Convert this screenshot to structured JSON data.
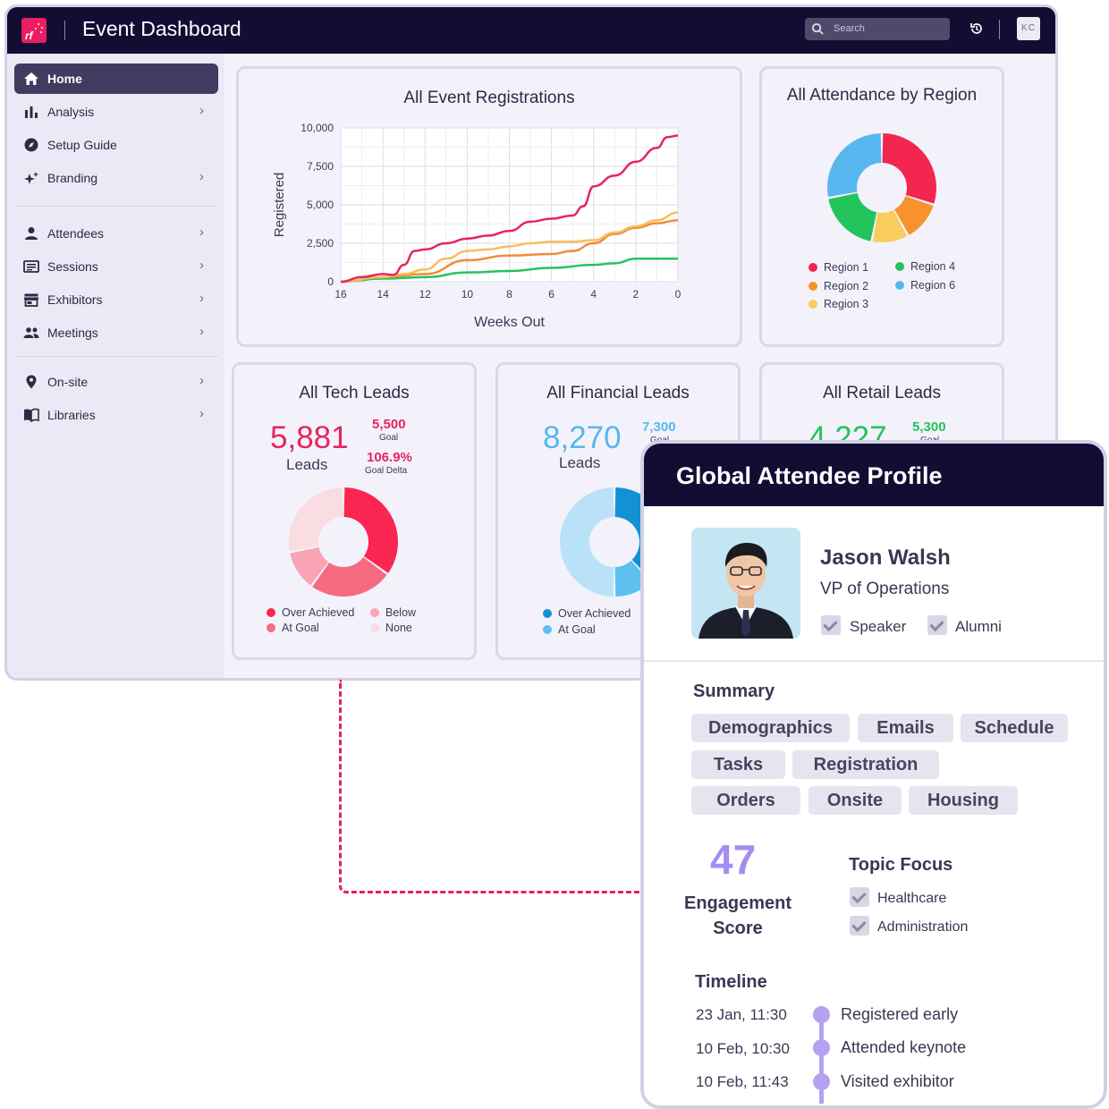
{
  "header": {
    "logo_text": "rf",
    "title": "Event Dashboard",
    "search_placeholder": "Search",
    "user_initials": "KC"
  },
  "sidebar": {
    "items": [
      {
        "label": "Home",
        "icon": "home-icon",
        "active": true
      },
      {
        "label": "Analysis",
        "icon": "bar-chart-icon"
      },
      {
        "label": "Setup Guide",
        "icon": "compass-icon"
      },
      {
        "label": "Branding",
        "icon": "sparkle-icon"
      },
      {
        "label": "Attendees",
        "icon": "person-icon"
      },
      {
        "label": "Sessions",
        "icon": "list-icon"
      },
      {
        "label": "Exhibitors",
        "icon": "storefront-icon"
      },
      {
        "label": "Meetings",
        "icon": "people-icon"
      },
      {
        "label": "On-site",
        "icon": "location-pin-icon"
      },
      {
        "label": "Libraries",
        "icon": "book-icon"
      }
    ]
  },
  "chart_data": [
    {
      "type": "line",
      "title": "All Event Registrations",
      "xlabel": "Weeks Out",
      "ylabel": "Registered",
      "x_ticks": [
        "16",
        "14",
        "12",
        "10",
        "8",
        "6",
        "4",
        "2",
        "0"
      ],
      "y_ticks": [
        "10,000",
        "7,500",
        "5,000",
        "2,500",
        "0"
      ],
      "ylim": [
        0,
        10000
      ],
      "xlim": [
        16,
        0
      ],
      "grid": true,
      "series": [
        {
          "color": "#e8245c",
          "x": [
            16,
            15,
            14,
            13.5,
            13,
            12.5,
            12,
            11,
            10,
            9,
            8,
            7,
            6,
            5,
            4.5,
            4,
            3,
            2,
            1,
            0.5,
            0
          ],
          "y": [
            0,
            300,
            500,
            450,
            1100,
            2000,
            2100,
            2500,
            2800,
            3000,
            3300,
            3900,
            4100,
            4300,
            4900,
            6200,
            6900,
            7800,
            8700,
            9400,
            9500
          ]
        },
        {
          "color": "#f7be5a",
          "x": [
            16,
            14,
            13,
            12,
            11,
            10,
            9,
            8,
            7,
            6,
            5,
            4,
            3,
            2,
            1,
            0
          ],
          "y": [
            0,
            300,
            500,
            800,
            1500,
            2000,
            2100,
            2300,
            2500,
            2600,
            2600,
            2700,
            3200,
            3600,
            4000,
            4500
          ]
        },
        {
          "color": "#f28a35",
          "x": [
            16,
            14,
            12,
            10,
            8,
            6,
            5,
            4,
            3,
            2,
            1,
            0
          ],
          "y": [
            0,
            300,
            500,
            1400,
            1700,
            1800,
            2000,
            2500,
            3100,
            3500,
            3800,
            4000
          ]
        },
        {
          "color": "#26c35e",
          "x": [
            16,
            14,
            12,
            10,
            8,
            6,
            4,
            3,
            2,
            1,
            0
          ],
          "y": [
            0,
            200,
            300,
            600,
            700,
            900,
            1100,
            1200,
            1500,
            1500,
            1500
          ]
        }
      ]
    },
    {
      "type": "pie",
      "title": "All Attendance by Region",
      "legend": [
        "Region 1",
        "Region 2",
        "Region 3",
        "Region 4",
        "Region 6"
      ],
      "slices": [
        {
          "label": "Region 1",
          "value": 30,
          "color": "#f2264f"
        },
        {
          "label": "Region 2",
          "value": 12,
          "color": "#f7922c"
        },
        {
          "label": "Region 3",
          "value": 11,
          "color": "#f9cc5e"
        },
        {
          "label": "Region 4",
          "value": 19,
          "color": "#23c45b"
        },
        {
          "label": "Region 6",
          "value": 28,
          "color": "#58b7ef"
        }
      ]
    },
    {
      "type": "pie",
      "title": "All Tech Leads",
      "legend": [
        "Over Achieved",
        "Below",
        "At Goal",
        "None"
      ],
      "slices": [
        {
          "label": "Over Achieved",
          "value": 35,
          "color": "#fb2552"
        },
        {
          "label": "At Goal",
          "value": 25,
          "color": "#f66b80"
        },
        {
          "label": "Below",
          "value": 12,
          "color": "#f9a3b5"
        },
        {
          "label": "None",
          "value": 28,
          "color": "#fadce3"
        }
      ]
    },
    {
      "type": "pie",
      "title": "All Financial Leads",
      "legend": [
        "Over Achieved",
        "At Goal"
      ],
      "slices": [
        {
          "label": "Over Achieved",
          "value": 38,
          "color": "#1292d4"
        },
        {
          "label": "At Goal",
          "value": 12,
          "color": "#5cc0f0"
        },
        {
          "label": "",
          "value": 50,
          "color": "#b9e2f8"
        }
      ]
    }
  ],
  "tech_leads": {
    "value": "5,881",
    "unit": "Leads",
    "goal_value": "5,500",
    "goal_label": "Goal",
    "delta_value": "106.9%",
    "delta_label": "Goal Delta"
  },
  "financial_leads": {
    "value": "8,270",
    "unit": "Leads",
    "goal_value": "7,300",
    "goal_label": "Goal"
  },
  "retail_leads": {
    "title": "All Retail Leads",
    "value": "4,227",
    "goal_value": "5,300",
    "goal_label": "Goal"
  },
  "profile": {
    "panel_title": "Global Attendee Profile",
    "name": "Jason Walsh",
    "role": "VP of Operations",
    "tags": [
      "Speaker",
      "Alumni"
    ],
    "summary_title": "Summary",
    "summary_buttons": [
      "Demographics",
      "Emails",
      "Schedule",
      "Tasks",
      "Registration",
      "Orders",
      "Onsite",
      "Housing"
    ],
    "engagement_score": "47",
    "engagement_label_1": "Engagement",
    "engagement_label_2": "Score",
    "topic_title": "Topic Focus",
    "topics": [
      "Healthcare",
      "Administration"
    ],
    "timeline_title": "Timeline",
    "timeline": [
      {
        "date": "23 Jan, 11:30",
        "event": "Registered early"
      },
      {
        "date": "10 Feb, 10:30",
        "event": "Attended keynote"
      },
      {
        "date": "10 Feb, 11:43",
        "event": "Visited exhibitor"
      }
    ]
  },
  "colors": {
    "navy": "#110d33",
    "accent_pink": "#e8245c",
    "accent_blue": "#58b7ef",
    "accent_green": "#23c45b",
    "accent_purple": "#a58df0"
  }
}
